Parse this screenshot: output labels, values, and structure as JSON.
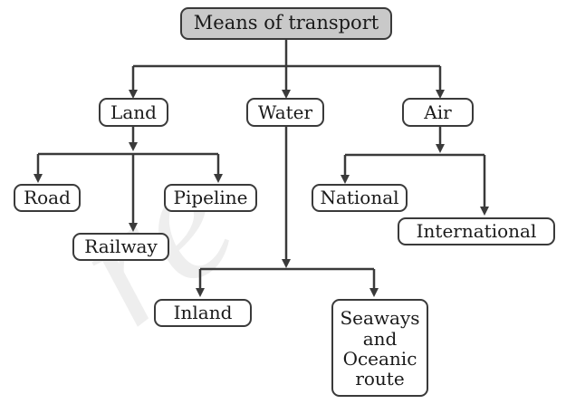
{
  "watermark": "re",
  "nodes": {
    "root": "Means of transport",
    "land": "Land",
    "water": "Water",
    "air": "Air",
    "road": "Road",
    "railway": "Railway",
    "pipeline": "Pipeline",
    "national": "National",
    "international": "International",
    "inland": "Inland",
    "seaways": "Seaways\nand\nOceanic\nroute"
  },
  "colors": {
    "line": "#3a3a3a",
    "root_fill": "#c9c9c9"
  }
}
